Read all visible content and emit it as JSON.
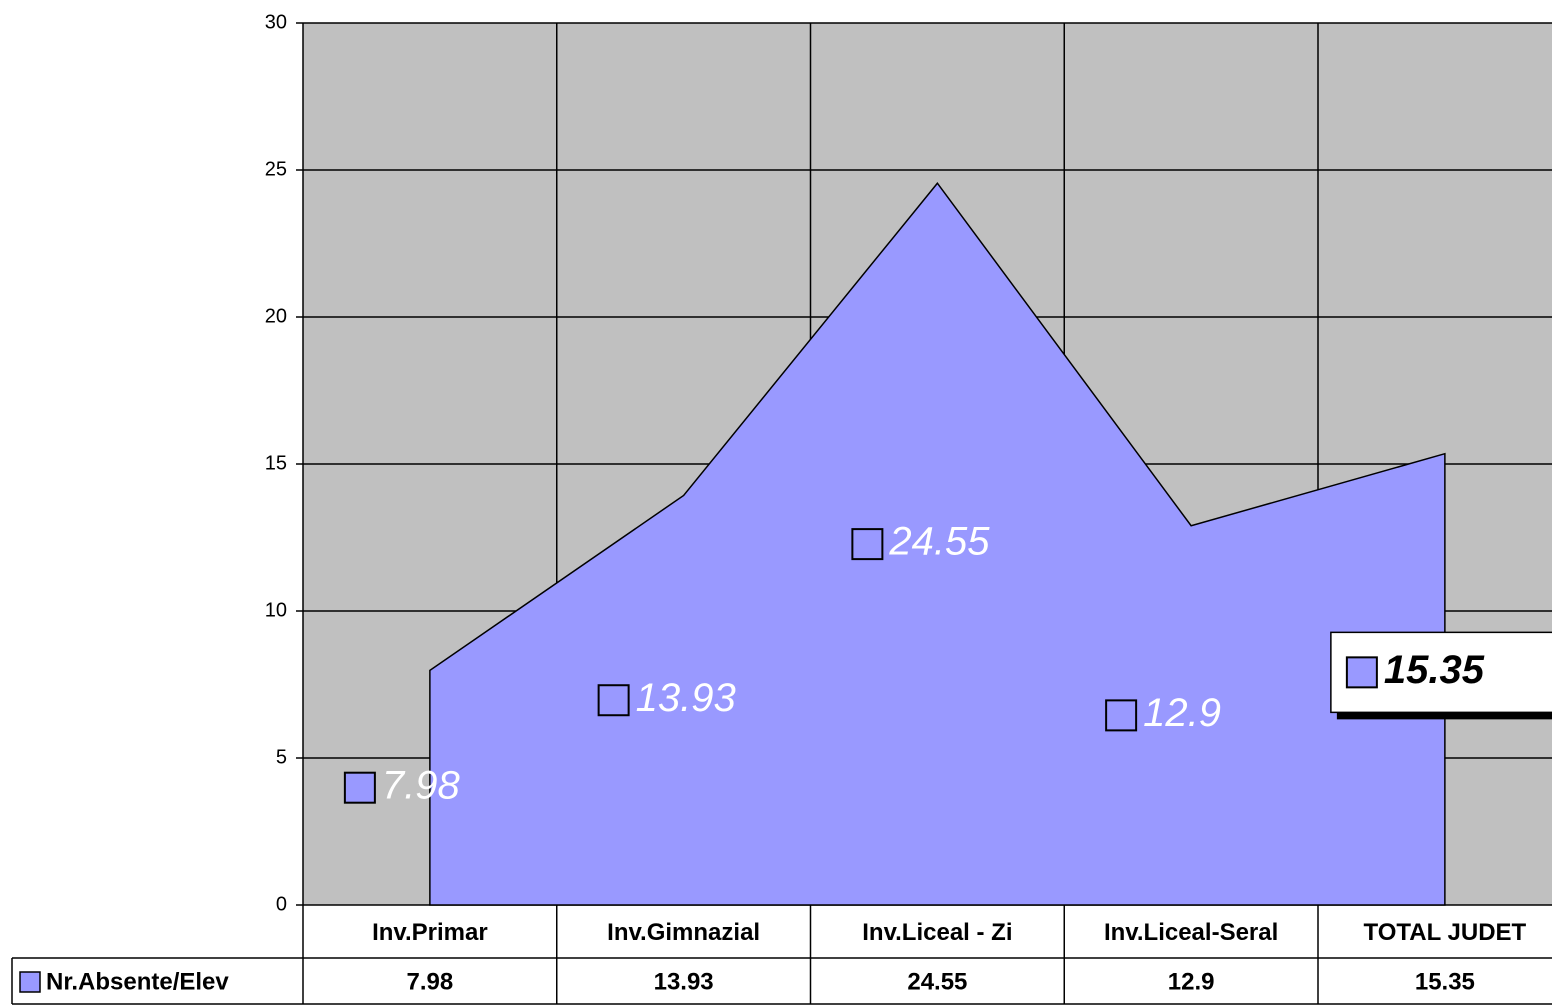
{
  "chart_data": {
    "type": "area",
    "categories": [
      "Inv.Primar",
      "Inv.Gimnazial",
      "Inv.Liceal - Zi",
      "Inv.Liceal-Seral",
      "TOTAL JUDET"
    ],
    "series": [
      {
        "name": "Nr.Absente/Elev",
        "color": "#9999ff",
        "values": [
          7.98,
          13.93,
          24.55,
          12.9,
          15.35
        ]
      }
    ],
    "ylim": [
      0,
      30
    ],
    "yticks": [
      0,
      5,
      10,
      15,
      20,
      25,
      30
    ],
    "grid": true,
    "data_table": true
  }
}
